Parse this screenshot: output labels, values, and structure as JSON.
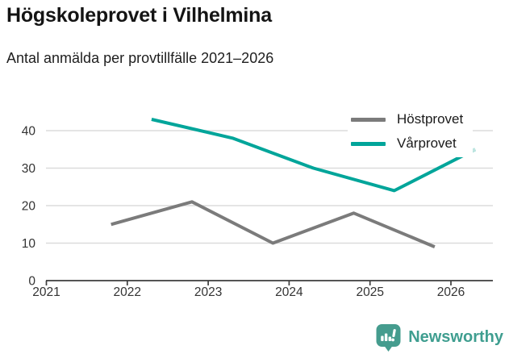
{
  "header": {
    "title": "Högskoleprovet i Vilhelmina",
    "subtitle": "Antal anmälda per provtillfälle 2021–2026"
  },
  "chart_data": {
    "type": "line",
    "title": "Högskoleprovet i Vilhelmina",
    "subtitle": "Antal anmälda per provtillfälle 2021–2026",
    "xlabel": "",
    "ylabel": "",
    "xlim": [
      2021,
      2026.55
    ],
    "ylim": [
      0,
      45
    ],
    "x_ticks": [
      2021,
      2022,
      2023,
      2024,
      2025,
      2026
    ],
    "x_tick_labels": [
      "2021",
      "2022",
      "2023",
      "2024",
      "2025",
      "2026"
    ],
    "y_ticks": [
      0,
      10,
      20,
      30,
      40
    ],
    "y_tick_labels": [
      "0",
      "10",
      "20",
      "30",
      "40"
    ],
    "grid": "horizontal",
    "legend_position": "top-right",
    "series": [
      {
        "name": "Höstprovet",
        "color": "#7b7b7b",
        "x": [
          2021.8,
          2022.8,
          2023.8,
          2024.8,
          2025.8
        ],
        "values": [
          15,
          21,
          10,
          18,
          9
        ]
      },
      {
        "name": "Vårprovet",
        "color": "#00a59a",
        "x": [
          2022.3,
          2023.3,
          2024.3,
          2025.3,
          2026.3
        ],
        "values": [
          43,
          38,
          30,
          24,
          35
        ],
        "preliminary_tip": {
          "x": [
            2026.14,
            2026.3
          ],
          "values": [
            33.2,
            35
          ],
          "color": "#bfe5e0"
        }
      }
    ],
    "colors": {
      "gridline": "#dcdcdc",
      "axis": "#3d3d3d",
      "tick_label": "#333333"
    }
  },
  "footer": {
    "brand": "Newsworthy",
    "brand_color": "#3f9e90",
    "logo_icon": "bar-chart-speech-bubble"
  }
}
